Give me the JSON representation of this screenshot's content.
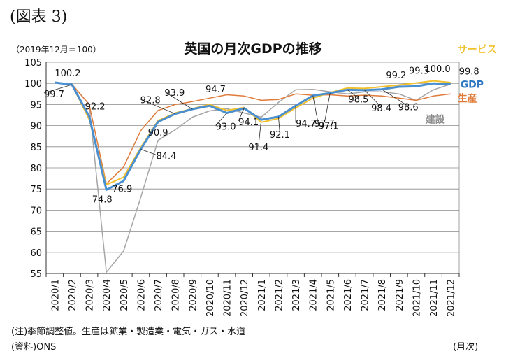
{
  "header": {
    "figure_label": "(図表 3)",
    "unit_label": "（2019年12月＝100）",
    "title": "英国の月次GDPの推移"
  },
  "footer": {
    "note": "(注)季節調整値。生産は鉱業・製造業・電気・ガス・水道",
    "source": "(資料)ONS",
    "x_unit": "(月次)"
  },
  "chart_data": {
    "type": "line",
    "title": "英国の月次GDPの推移",
    "ylabel": "（2019年12月＝100）",
    "xlabel": "(月次)",
    "ylim": [
      55,
      105
    ],
    "yticks": [
      55,
      60,
      65,
      70,
      75,
      80,
      85,
      90,
      95,
      100,
      105
    ],
    "grid": true,
    "legend": "series names at line ends, right",
    "categories": [
      "2020/1",
      "2020/2",
      "2020/3",
      "2020/4",
      "2020/5",
      "2020/6",
      "2020/7",
      "2020/8",
      "2020/9",
      "2020/10",
      "2020/11",
      "2020/12",
      "2021/1",
      "2021/2",
      "2021/3",
      "2021/4",
      "2021/5",
      "2021/6",
      "2021/7",
      "2021/8",
      "2021/9",
      "2021/10",
      "2021/11",
      "2021/12"
    ],
    "series": [
      {
        "name": "建設",
        "color": "#a6a6a6",
        "width": 1.5,
        "values": [
          100.3,
          99.8,
          95.0,
          55.3,
          60.3,
          73.0,
          86.5,
          89.0,
          92.0,
          93.5,
          94.0,
          93.0,
          92.0,
          95.5,
          98.5,
          98.6,
          98.0,
          97.5,
          98.0,
          98.0,
          97.5,
          96.0,
          98.5,
          99.8
        ]
      },
      {
        "name": "生産",
        "color": "#e07b39",
        "width": 1.5,
        "values": [
          100.2,
          99.8,
          95.0,
          76.2,
          80.2,
          88.8,
          93.6,
          95.0,
          95.7,
          96.5,
          97.3,
          97.0,
          96.0,
          96.2,
          97.5,
          97.2,
          97.3,
          97.0,
          97.2,
          97.0,
          96.5,
          96.0,
          97.0,
          97.5
        ]
      },
      {
        "name": "サービス",
        "color": "#f2c12e",
        "width": 2,
        "values": [
          100.2,
          99.7,
          91.5,
          76.0,
          77.8,
          84.8,
          91.2,
          93.0,
          94.0,
          95.0,
          93.6,
          94.3,
          90.8,
          91.7,
          94.2,
          96.5,
          97.8,
          98.9,
          98.8,
          99.2,
          99.6,
          100.1,
          100.6,
          100.2
        ]
      },
      {
        "name": "GDP",
        "color": "#4a8fcf",
        "width": 3,
        "values": [
          100.2,
          99.7,
          92.2,
          74.8,
          76.9,
          84.4,
          90.9,
          92.8,
          93.9,
          94.7,
          93.0,
          94.1,
          91.4,
          92.1,
          94.7,
          97.1,
          97.7,
          98.5,
          98.4,
          98.6,
          99.2,
          99.3,
          100.0,
          99.8
        ]
      }
    ],
    "data_labels": [
      {
        "index": 0,
        "value": "100.2",
        "dx": 0,
        "dy": -9,
        "anchor": "start"
      },
      {
        "index": 1,
        "value": "99.7",
        "dx": -40,
        "dy": 18,
        "anchor": "start"
      },
      {
        "index": 2,
        "value": "92.2",
        "dx": -6,
        "dy": -10,
        "anchor": "start"
      },
      {
        "index": 3,
        "value": "74.8",
        "dx": -6,
        "dy": 18,
        "anchor": "middle"
      },
      {
        "index": 4,
        "value": "76.9",
        "dx": -2,
        "dy": 16,
        "anchor": "middle"
      },
      {
        "index": 5,
        "value": "84.4",
        "dx": 22,
        "dy": 14,
        "anchor": "start"
      },
      {
        "index": 6,
        "value": "90.9",
        "dx": 0,
        "dy": 20,
        "anchor": "middle"
      },
      {
        "index": 7,
        "value": "92.8",
        "dx": -50,
        "dy": -15,
        "anchor": "start"
      },
      {
        "index": 8,
        "value": "93.9",
        "dx": -40,
        "dy": -19,
        "anchor": "start"
      },
      {
        "index": 9,
        "value": "94.7",
        "dx": -6,
        "dy": -19,
        "anchor": "start"
      },
      {
        "index": 10,
        "value": "93.0",
        "dx": -16,
        "dy": 24,
        "anchor": "start"
      },
      {
        "index": 11,
        "value": "94.1",
        "dx": -8,
        "dy": 24,
        "anchor": "start"
      },
      {
        "index": 12,
        "value": "91.4",
        "dx": -4,
        "dy": 44,
        "anchor": "middle"
      },
      {
        "index": 13,
        "value": "92.1",
        "dx": 2,
        "dy": 30,
        "anchor": "middle"
      },
      {
        "index": 14,
        "value": "94.7",
        "dx": 0,
        "dy": 30,
        "anchor": "start"
      },
      {
        "index": 15,
        "value": "97.1",
        "dx": 8,
        "dy": 48,
        "anchor": "start"
      },
      {
        "index": 16,
        "value": "97.7",
        "dx": -8,
        "dy": 48,
        "anchor": "middle"
      },
      {
        "index": 17,
        "value": "98.5",
        "dx": 16,
        "dy": 18,
        "anchor": "middle"
      },
      {
        "index": 18,
        "value": "98.4",
        "dx": 24,
        "dy": 30,
        "anchor": "middle"
      },
      {
        "index": 19,
        "value": "98.6",
        "dx": 38,
        "dy": 30,
        "anchor": "middle"
      },
      {
        "index": 20,
        "value": "99.2",
        "dx": -4,
        "dy": -12,
        "anchor": "middle"
      },
      {
        "index": 21,
        "value": "99.3",
        "dx": 4,
        "dy": -18,
        "anchor": "middle"
      },
      {
        "index": 22,
        "value": "100.0",
        "dx": 6,
        "dy": -16,
        "anchor": "middle"
      },
      {
        "index": 23,
        "value": "99.8",
        "dx": 12,
        "dy": -14,
        "anchor": "start"
      }
    ],
    "series_labels": [
      {
        "name": "サービス",
        "color": "#f2c12e",
        "dx": 10,
        "dy": -50
      },
      {
        "name": "GDP",
        "color": "#2e78c2",
        "dx": 14,
        "dy": 0
      },
      {
        "name": "生産",
        "color": "#e07b39",
        "dx": 10,
        "dy": 20
      },
      {
        "name": "建設",
        "color": "#8c8c8c",
        "dx": -36,
        "dy": 50
      }
    ]
  }
}
